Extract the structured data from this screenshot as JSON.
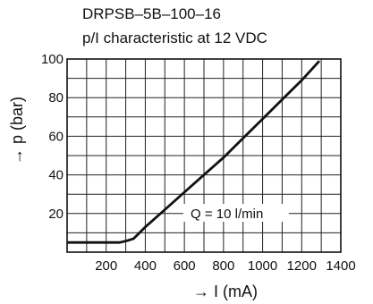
{
  "chart_data": {
    "type": "line",
    "title": "DRPSB–5B–100–16",
    "subtitle": "p/I characteristic at 12 VDC",
    "xlabel": "→ I (mA)",
    "ylabel": "→ p (bar)",
    "xlim": [
      0,
      1400
    ],
    "ylim": [
      0,
      100
    ],
    "x_ticks": [
      200,
      400,
      600,
      800,
      1000,
      1200,
      1400
    ],
    "y_ticks": [
      20,
      40,
      60,
      80,
      100
    ],
    "x_grid_step": 100,
    "y_grid_step": 10,
    "grid": true,
    "annotation": "Q = 10 l/min",
    "series": [
      {
        "x": [
          0,
          270,
          310,
          340,
          360,
          400,
          500,
          600,
          700,
          800,
          900,
          1000,
          1100,
          1200,
          1290
        ],
        "y": [
          5,
          5,
          6,
          7,
          9,
          13,
          22,
          31,
          40,
          49,
          59,
          69,
          79,
          89,
          99
        ]
      }
    ]
  }
}
